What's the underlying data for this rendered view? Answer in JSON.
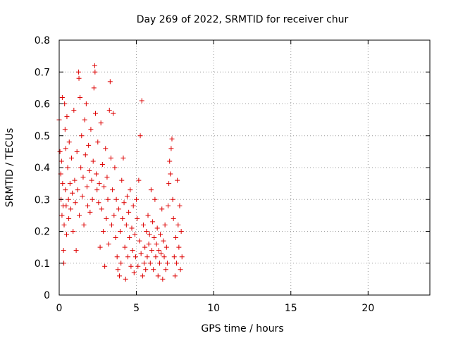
{
  "chart_data": {
    "type": "scatter",
    "title": "Day 269 of 2022, SRMTID for receiver chur",
    "xlabel": "GPS time / hours",
    "ylabel": "SRMTID / TECUs",
    "xlim": [
      0,
      24
    ],
    "ylim": [
      0,
      0.8
    ],
    "xticks": [
      0,
      5,
      10,
      15,
      20
    ],
    "yticks": [
      0,
      0.1,
      0.2,
      0.3,
      0.4,
      0.5,
      0.6,
      0.7,
      0.8
    ],
    "xtick_labels": [
      "0",
      "5",
      "10",
      "15",
      "20"
    ],
    "ytick_labels": [
      "0",
      "0.1",
      "0.2",
      "0.3",
      "0.4",
      "0.5",
      "0.6",
      "0.7",
      "0.8"
    ],
    "grid": true,
    "marker": "+",
    "marker_color": "#dd0000",
    "series": [
      {
        "name": "SRMTID",
        "points": [
          [
            0.0,
            0.55
          ],
          [
            0.05,
            0.45
          ],
          [
            0.1,
            0.38
          ],
          [
            0.12,
            0.3
          ],
          [
            0.15,
            0.42
          ],
          [
            0.18,
            0.25
          ],
          [
            0.2,
            0.62
          ],
          [
            0.22,
            0.35
          ],
          [
            0.25,
            0.28
          ],
          [
            0.28,
            0.14
          ],
          [
            0.3,
            0.1
          ],
          [
            0.32,
            0.22
          ],
          [
            0.35,
            0.6
          ],
          [
            0.38,
            0.52
          ],
          [
            0.4,
            0.33
          ],
          [
            0.42,
            0.46
          ],
          [
            0.45,
            0.28
          ],
          [
            0.48,
            0.19
          ],
          [
            0.5,
            0.56
          ],
          [
            0.55,
            0.4
          ],
          [
            0.6,
            0.3
          ],
          [
            0.62,
            0.24
          ],
          [
            0.65,
            0.48
          ],
          [
            0.7,
            0.35
          ],
          [
            0.75,
            0.27
          ],
          [
            0.8,
            0.43
          ],
          [
            0.85,
            0.32
          ],
          [
            0.9,
            0.2
          ],
          [
            0.95,
            0.58
          ],
          [
            1.0,
            0.36
          ],
          [
            1.05,
            0.29
          ],
          [
            1.1,
            0.14
          ],
          [
            1.15,
            0.45
          ],
          [
            1.2,
            0.33
          ],
          [
            1.25,
            0.7
          ],
          [
            1.28,
            0.68
          ],
          [
            1.3,
            0.25
          ],
          [
            1.35,
            0.62
          ],
          [
            1.4,
            0.4
          ],
          [
            1.45,
            0.5
          ],
          [
            1.5,
            0.31
          ],
          [
            1.55,
            0.37
          ],
          [
            1.6,
            0.22
          ],
          [
            1.65,
            0.55
          ],
          [
            1.7,
            0.44
          ],
          [
            1.75,
            0.6
          ],
          [
            1.8,
            0.34
          ],
          [
            1.85,
            0.28
          ],
          [
            1.9,
            0.47
          ],
          [
            1.95,
            0.39
          ],
          [
            2.0,
            0.26
          ],
          [
            2.05,
            0.52
          ],
          [
            2.1,
            0.36
          ],
          [
            2.15,
            0.3
          ],
          [
            2.2,
            0.42
          ],
          [
            2.25,
            0.65
          ],
          [
            2.3,
            0.72
          ],
          [
            2.32,
            0.7
          ],
          [
            2.35,
            0.57
          ],
          [
            2.4,
            0.38
          ],
          [
            2.45,
            0.33
          ],
          [
            2.5,
            0.48
          ],
          [
            2.55,
            0.29
          ],
          [
            2.6,
            0.35
          ],
          [
            2.65,
            0.15
          ],
          [
            2.7,
            0.54
          ],
          [
            2.75,
            0.27
          ],
          [
            2.8,
            0.41
          ],
          [
            2.85,
            0.2
          ],
          [
            2.9,
            0.34
          ],
          [
            2.95,
            0.09
          ],
          [
            3.0,
            0.46
          ],
          [
            3.05,
            0.24
          ],
          [
            3.1,
            0.37
          ],
          [
            3.15,
            0.3
          ],
          [
            3.2,
            0.16
          ],
          [
            3.25,
            0.58
          ],
          [
            3.3,
            0.67
          ],
          [
            3.35,
            0.43
          ],
          [
            3.4,
            0.22
          ],
          [
            3.45,
            0.33
          ],
          [
            3.5,
            0.57
          ],
          [
            3.55,
            0.25
          ],
          [
            3.6,
            0.4
          ],
          [
            3.65,
            0.18
          ],
          [
            3.7,
            0.3
          ],
          [
            3.75,
            0.12
          ],
          [
            3.8,
            0.08
          ],
          [
            3.85,
            0.27
          ],
          [
            3.9,
            0.06
          ],
          [
            3.95,
            0.2
          ],
          [
            4.0,
            0.1
          ],
          [
            4.05,
            0.36
          ],
          [
            4.1,
            0.24
          ],
          [
            4.15,
            0.43
          ],
          [
            4.2,
            0.29
          ],
          [
            4.25,
            0.15
          ],
          [
            4.3,
            0.05
          ],
          [
            4.35,
            0.22
          ],
          [
            4.4,
            0.31
          ],
          [
            4.45,
            0.12
          ],
          [
            4.5,
            0.26
          ],
          [
            4.55,
            0.18
          ],
          [
            4.6,
            0.33
          ],
          [
            4.65,
            0.09
          ],
          [
            4.7,
            0.21
          ],
          [
            4.75,
            0.14
          ],
          [
            4.8,
            0.28
          ],
          [
            4.85,
            0.07
          ],
          [
            4.9,
            0.19
          ],
          [
            4.95,
            0.12
          ],
          [
            5.0,
            0.3
          ],
          [
            5.05,
            0.24
          ],
          [
            5.1,
            0.09
          ],
          [
            5.15,
            0.36
          ],
          [
            5.2,
            0.17
          ],
          [
            5.25,
            0.5
          ],
          [
            5.3,
            0.13
          ],
          [
            5.35,
            0.61
          ],
          [
            5.4,
            0.06
          ],
          [
            5.45,
            0.22
          ],
          [
            5.5,
            0.1
          ],
          [
            5.55,
            0.15
          ],
          [
            5.6,
            0.08
          ],
          [
            5.65,
            0.2
          ],
          [
            5.7,
            0.12
          ],
          [
            5.75,
            0.25
          ],
          [
            5.8,
            0.16
          ],
          [
            5.85,
            0.19
          ],
          [
            5.9,
            0.1
          ],
          [
            5.95,
            0.33
          ],
          [
            6.0,
            0.14
          ],
          [
            6.05,
            0.23
          ],
          [
            6.1,
            0.08
          ],
          [
            6.15,
            0.18
          ],
          [
            6.2,
            0.3
          ],
          [
            6.25,
            0.12
          ],
          [
            6.3,
            0.16
          ],
          [
            6.35,
            0.21
          ],
          [
            6.4,
            0.06
          ],
          [
            6.45,
            0.14
          ],
          [
            6.5,
            0.1
          ],
          [
            6.55,
            0.19
          ],
          [
            6.6,
            0.13
          ],
          [
            6.65,
            0.27
          ],
          [
            6.7,
            0.05
          ],
          [
            6.75,
            0.17
          ],
          [
            6.8,
            0.12
          ],
          [
            6.85,
            0.22
          ],
          [
            6.9,
            0.08
          ],
          [
            6.95,
            0.15
          ],
          [
            7.0,
            0.1
          ],
          [
            7.05,
            0.28
          ],
          [
            7.1,
            0.35
          ],
          [
            7.15,
            0.42
          ],
          [
            7.2,
            0.38
          ],
          [
            7.25,
            0.46
          ],
          [
            7.3,
            0.49
          ],
          [
            7.35,
            0.3
          ],
          [
            7.4,
            0.24
          ],
          [
            7.45,
            0.12
          ],
          [
            7.5,
            0.06
          ],
          [
            7.55,
            0.18
          ],
          [
            7.6,
            0.1
          ],
          [
            7.65,
            0.36
          ],
          [
            7.7,
            0.22
          ],
          [
            7.75,
            0.15
          ],
          [
            7.8,
            0.28
          ],
          [
            7.85,
            0.08
          ],
          [
            7.9,
            0.2
          ],
          [
            7.95,
            0.12
          ]
        ]
      }
    ]
  }
}
